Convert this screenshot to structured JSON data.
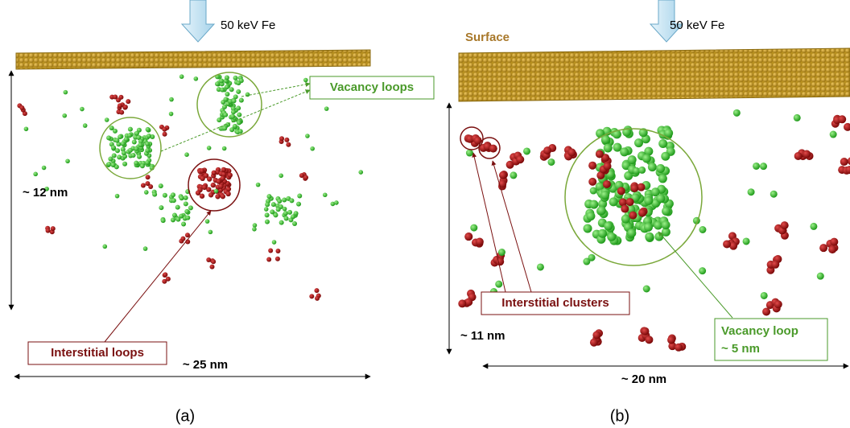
{
  "panels": [
    {
      "label": "(a)",
      "beam": "50 keV Fe",
      "vacancy_label": "Vacancy loops",
      "interstitial_label": "Interstitial loops",
      "depth": "~ 12 nm",
      "width": "~ 25 nm"
    },
    {
      "label": "(b)",
      "beam": "50 keV Fe",
      "surface": "Surface",
      "interstitial_label": "Interstitial clusters",
      "vacancy_label": [
        "Vacancy loop",
        "~ 5 nm"
      ],
      "depth": "~ 11 nm",
      "width": "~ 20 nm"
    }
  ]
}
